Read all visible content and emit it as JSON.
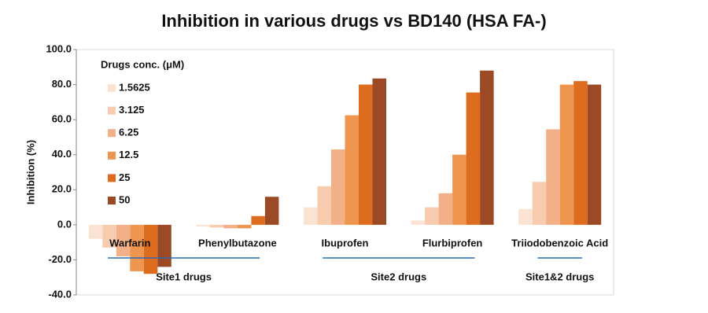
{
  "chart_data": {
    "type": "bar",
    "title": "Inhibition in various drugs vs BD140 (HSA FA-)",
    "y_label": "Inhibition (%)",
    "legend_title": "Drugs conc. (μM)",
    "categories": [
      "Warfarin",
      "Phenylbutazone",
      "Ibuprofen",
      "Flurbiprofen",
      "Triiodobenzoic Acid"
    ],
    "groups": [
      {
        "label": "Site1 drugs",
        "count": 2
      },
      {
        "label": "Site2 drugs",
        "count": 2
      },
      {
        "label": "Site1&2 drugs",
        "count": 1
      }
    ],
    "series": [
      {
        "name": "1.5625",
        "color": "#fbe3d3",
        "values": [
          -8,
          -1,
          10,
          2.5,
          9
        ]
      },
      {
        "name": "3.125",
        "color": "#f7cbad",
        "values": [
          -13,
          -1.5,
          22,
          10,
          24.5
        ]
      },
      {
        "name": "6.25",
        "color": "#f2b088",
        "values": [
          -18,
          -2,
          43,
          18,
          54.5
        ]
      },
      {
        "name": "12.5",
        "color": "#ee9550",
        "values": [
          -26.5,
          -2,
          62.5,
          40,
          80
        ]
      },
      {
        "name": "25",
        "color": "#dd6c1f",
        "values": [
          -28,
          5,
          80,
          75.5,
          82
        ]
      },
      {
        "name": "50",
        "color": "#9b4a25",
        "values": [
          -24,
          16,
          83.5,
          88,
          80
        ]
      }
    ],
    "ylim": [
      -40,
      100
    ],
    "yticks": [
      {
        "value": -40,
        "label": "-40.0"
      },
      {
        "value": -20,
        "label": "-20.0"
      },
      {
        "value": 0,
        "label": "0.0"
      },
      {
        "value": 20,
        "label": "20.0"
      },
      {
        "value": 40,
        "label": "40.0"
      },
      {
        "value": 60,
        "label": "60.0"
      },
      {
        "value": 80,
        "label": "80.0"
      },
      {
        "value": 100,
        "label": "100.0"
      }
    ],
    "grid": false
  }
}
